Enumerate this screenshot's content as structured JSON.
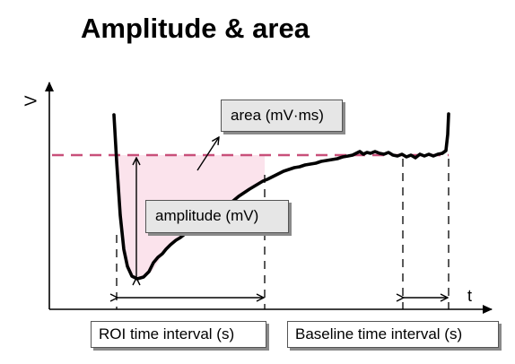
{
  "title": "Amplitude & area",
  "y_axis_label": "V",
  "x_axis_label": "t",
  "labels": {
    "area": "area (mV·ms)",
    "amplitude": "amplitude (mV)",
    "roi_interval": "ROI time interval (s)",
    "baseline_interval": "Baseline time interval (s)"
  },
  "colors": {
    "baseline_dashed": "#c8507a",
    "area_fill": "#fbe3ec",
    "trace": "#000000",
    "box_fill": "#e6e6e6"
  }
}
